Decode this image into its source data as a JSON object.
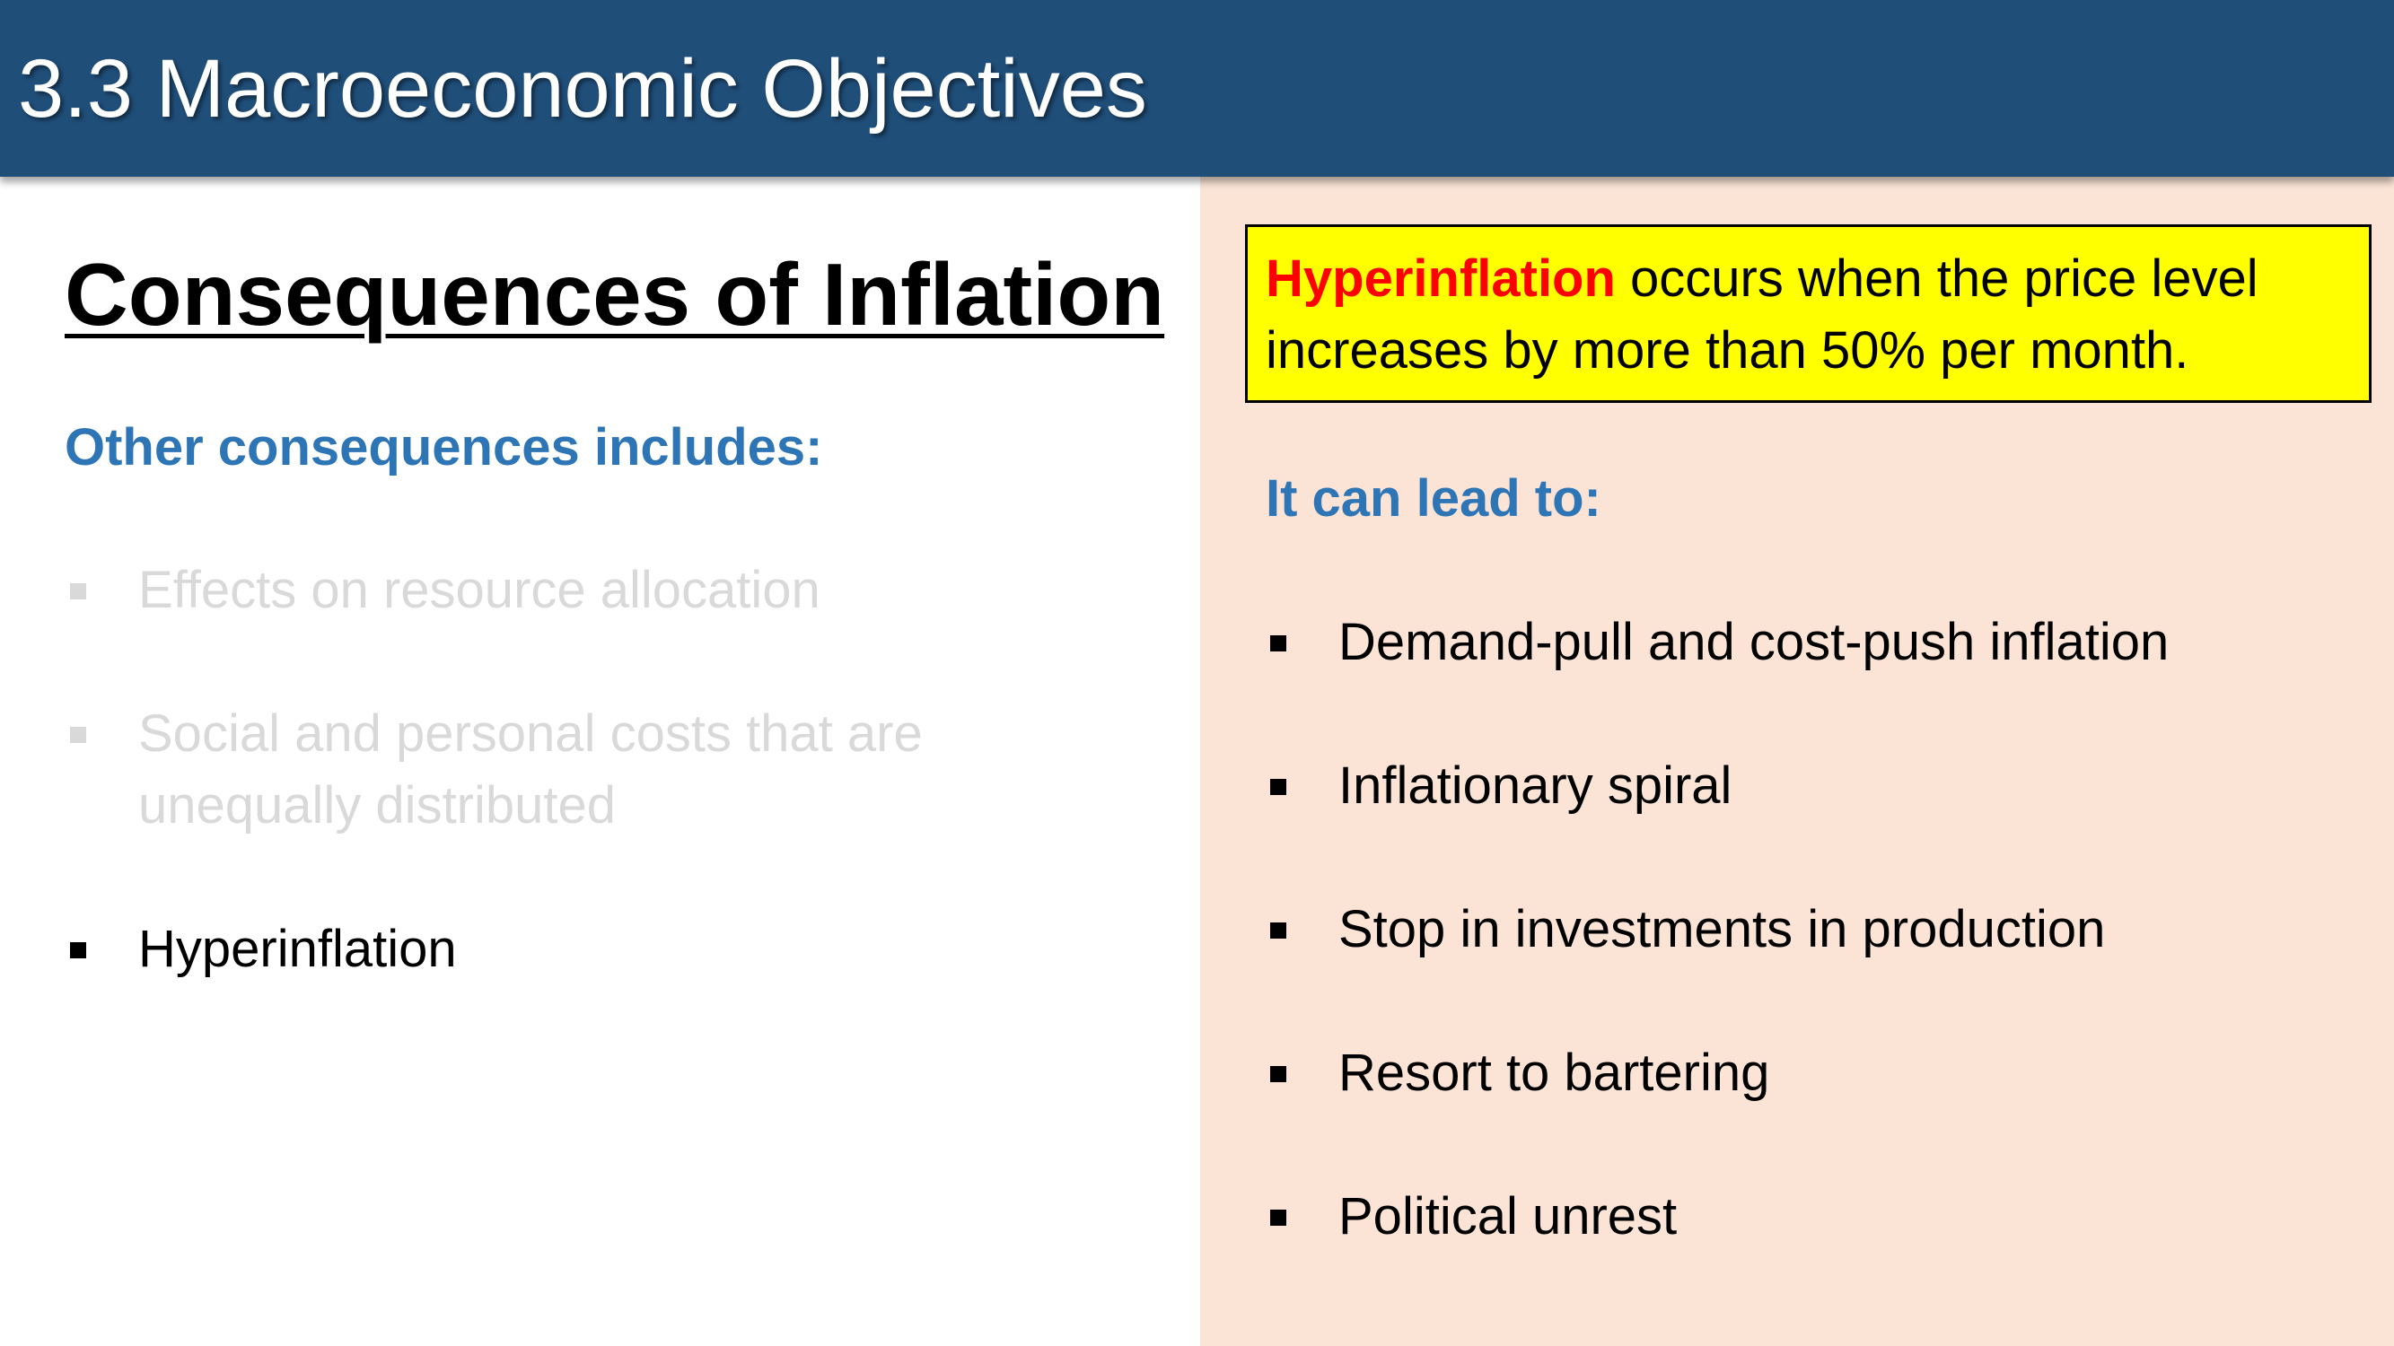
{
  "header": {
    "title": "3.3 Macroeconomic Objectives"
  },
  "left": {
    "heading": "Consequences of Inflation",
    "subheading": "Other consequences includes:",
    "items": [
      {
        "text": "Effects on resource allocation",
        "faded": true
      },
      {
        "line1": "Social and personal costs that are",
        "line2": "unequally distributed",
        "faded": true
      },
      {
        "text": "Hyperinflation",
        "faded": false
      }
    ]
  },
  "right": {
    "definition": {
      "keyword": "Hyperinflation",
      "rest_line1": " occurs when the price level",
      "rest_line2": "increases by more than 50% per month."
    },
    "subheading": "It can lead to:",
    "items": [
      "Demand-pull and cost-push inflation",
      "Inflationary spiral",
      "Stop in investments in production",
      "Resort to bartering",
      "Political unrest"
    ]
  },
  "colors": {
    "header_bg": "#1f4e79",
    "accent_blue": "#2e75b6",
    "highlight_yellow": "#ffff00",
    "keyword_red": "#ff0000",
    "panel_peach": "#fbe4d6",
    "faded_gray": "#d9d9d9"
  }
}
